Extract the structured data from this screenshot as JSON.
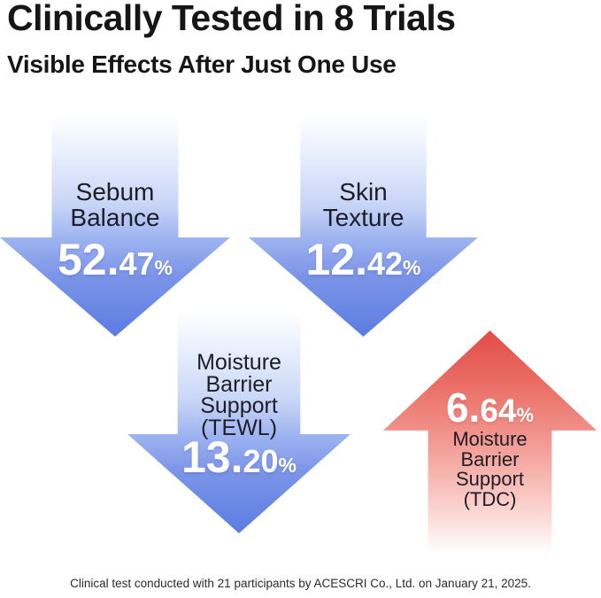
{
  "header": {
    "title": "Clinically Tested in 8 Trials",
    "subtitle": "Visible Effects After Just One Use"
  },
  "arrows": [
    {
      "name": "sebum-balance",
      "direction": "down",
      "theme_color": "#5b7ce1",
      "label_lines": [
        "Sebum",
        "Balance"
      ],
      "value": 52.47,
      "value_main": "52.",
      "value_dec": "47",
      "value_pct": "%"
    },
    {
      "name": "skin-texture",
      "direction": "down",
      "theme_color": "#5b7ce1",
      "label_lines": [
        "Skin",
        "Texture"
      ],
      "value": 12.42,
      "value_main": "12.",
      "value_dec": "42",
      "value_pct": "%"
    },
    {
      "name": "moisture-barrier-support-tewl",
      "direction": "down",
      "theme_color": "#5b7ce1",
      "label_lines": [
        "Moisture",
        "Barrier",
        "Support",
        "(TEWL)"
      ],
      "value": 13.2,
      "value_main": "13.",
      "value_dec": "20",
      "value_pct": "%"
    },
    {
      "name": "moisture-barrier-support-tdc",
      "direction": "up",
      "theme_color": "#e24c48",
      "label_lines": [
        "Moisture",
        "Barrier",
        "Support",
        "(TDC)"
      ],
      "value": 6.64,
      "value_main": "6.",
      "value_dec": "64",
      "value_pct": "%"
    }
  ],
  "footer": {
    "note": "Clinical test conducted with 21 participants by ACESCRI Co., Ltd. on January 21, 2025."
  },
  "colors": {
    "background": "#ffffff",
    "text_dark": "#161616",
    "label_dark": "#1d1d27",
    "value_white": "#ffffff",
    "blue_strong": "#5b7ce1",
    "red_strong": "#e24c48"
  },
  "chart_data": {
    "type": "table",
    "title": "Clinically Tested in 8 Trials",
    "subtitle": "Visible Effects After Just One Use",
    "columns": [
      "metric",
      "change_percent",
      "direction"
    ],
    "rows": [
      [
        "Sebum Balance",
        52.47,
        "decrease"
      ],
      [
        "Skin Texture",
        12.42,
        "decrease"
      ],
      [
        "Moisture Barrier Support (TEWL)",
        13.2,
        "decrease"
      ],
      [
        "Moisture Barrier Support (TDC)",
        6.64,
        "increase"
      ]
    ],
    "legend_position": "none",
    "grid": false,
    "footnote": "Clinical test conducted with 21 participants by ACESCRI Co., Ltd. on January 21, 2025."
  }
}
